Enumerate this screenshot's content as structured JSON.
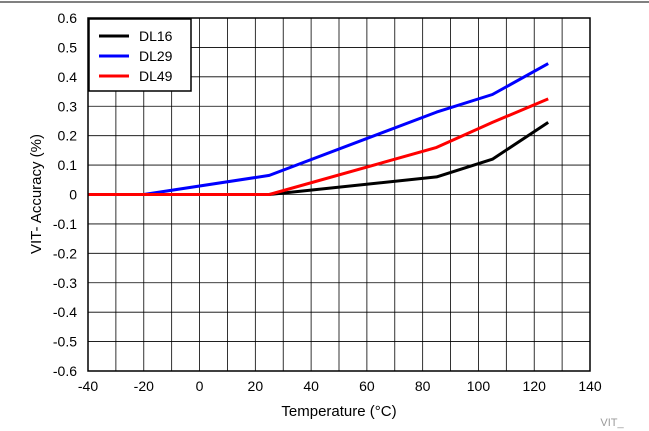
{
  "chart_data": {
    "type": "line",
    "title": "",
    "xlabel": "Temperature (°C)",
    "ylabel": "VIT- Accuracy (%)",
    "xlim": [
      -40,
      140
    ],
    "ylim": [
      -0.6,
      0.6
    ],
    "x_ticks": [
      "-40",
      "-20",
      "0",
      "20",
      "40",
      "60",
      "80",
      "100",
      "120",
      "140"
    ],
    "y_ticks": [
      "0.6",
      "0.5",
      "0.4",
      "0.3",
      "0.2",
      "0.1",
      "0",
      "-0.1",
      "-0.2",
      "-0.3",
      "-0.4",
      "-0.5",
      "-0.6"
    ],
    "grid": true,
    "legend_position": "top-left",
    "footnote": "VIT_",
    "series": [
      {
        "name": "DL16",
        "color": "#000000",
        "x": [
          -40,
          -20,
          25,
          85,
          105,
          125
        ],
        "y": [
          0,
          0,
          0,
          0.06,
          0.12,
          0.245
        ]
      },
      {
        "name": "DL29",
        "color": "#0000ff",
        "x": [
          -40,
          -20,
          25,
          85,
          105,
          125
        ],
        "y": [
          0,
          0,
          0.065,
          0.28,
          0.34,
          0.445
        ]
      },
      {
        "name": "DL49",
        "color": "#ff0000",
        "x": [
          -40,
          -20,
          25,
          85,
          105,
          125
        ],
        "y": [
          0,
          0,
          0,
          0.16,
          0.245,
          0.325
        ]
      }
    ]
  }
}
